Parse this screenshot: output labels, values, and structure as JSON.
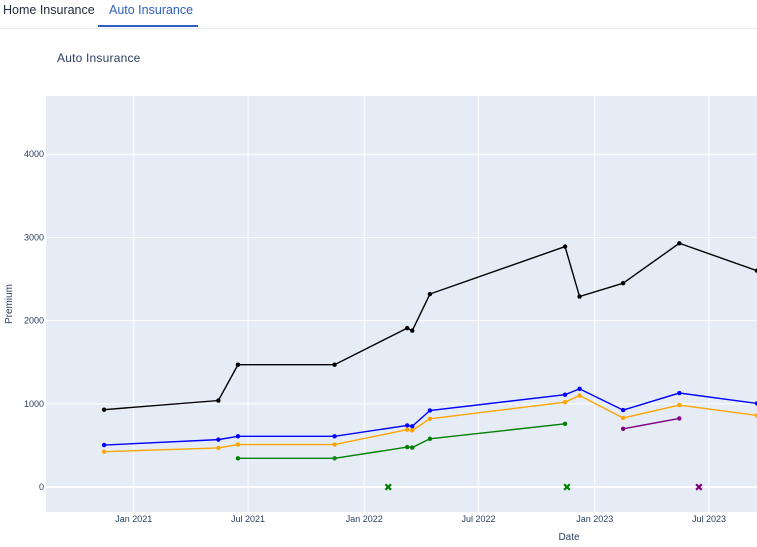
{
  "tabs": [
    {
      "label": "Home Insurance",
      "active": false
    },
    {
      "label": "Auto Insurance",
      "active": true
    }
  ],
  "colors": {
    "active_tab": "#2f5ec4",
    "plot_bg": "#e5ecf6",
    "grid": "#ffffff"
  },
  "chart_data": {
    "type": "line",
    "title": "Auto Insurance",
    "xlabel": "Date",
    "ylabel": "Premium",
    "ylim": [
      -300,
      4700
    ],
    "xlim": [
      "2020-08-15",
      "2023-09-15"
    ],
    "x_ticks": [
      {
        "label": "Jan 2021",
        "date": "2021-01-01"
      },
      {
        "label": "Jul 2021",
        "date": "2021-07-01"
      },
      {
        "label": "Jan 2022",
        "date": "2022-01-01"
      },
      {
        "label": "Jul 2022",
        "date": "2022-07-01"
      },
      {
        "label": "Jan 2023",
        "date": "2023-01-01"
      },
      {
        "label": "Jul 2023",
        "date": "2023-07-01"
      }
    ],
    "y_ticks": [
      0,
      1000,
      2000,
      3000,
      4000
    ],
    "grid": true,
    "legend": "none",
    "series": [
      {
        "color": "#000000",
        "mode": "lines+markers",
        "points": [
          {
            "x": "2020-11-15",
            "y": 930
          },
          {
            "x": "2021-05-15",
            "y": 1040
          },
          {
            "x": "2021-06-15",
            "y": 1470
          },
          {
            "x": "2021-11-15",
            "y": 1470
          },
          {
            "x": "2022-03-10",
            "y": 1910
          },
          {
            "x": "2022-03-18",
            "y": 1880
          },
          {
            "x": "2022-04-15",
            "y": 2320
          },
          {
            "x": "2022-11-15",
            "y": 2890
          },
          {
            "x": "2022-12-08",
            "y": 2290
          },
          {
            "x": "2023-02-15",
            "y": 2450
          },
          {
            "x": "2023-05-15",
            "y": 2930
          },
          {
            "x": "2023-09-15",
            "y": 2600
          }
        ]
      },
      {
        "color": "#0000ff",
        "mode": "lines+markers",
        "points": [
          {
            "x": "2020-11-15",
            "y": 505
          },
          {
            "x": "2021-05-15",
            "y": 570
          },
          {
            "x": "2021-06-15",
            "y": 610
          },
          {
            "x": "2021-11-15",
            "y": 610
          },
          {
            "x": "2022-03-10",
            "y": 740
          },
          {
            "x": "2022-03-18",
            "y": 730
          },
          {
            "x": "2022-04-15",
            "y": 920
          },
          {
            "x": "2022-11-15",
            "y": 1110
          },
          {
            "x": "2022-12-08",
            "y": 1180
          },
          {
            "x": "2023-02-15",
            "y": 925
          },
          {
            "x": "2023-05-15",
            "y": 1130
          },
          {
            "x": "2023-09-15",
            "y": 1005
          }
        ]
      },
      {
        "color": "#ffa500",
        "mode": "lines+markers",
        "points": [
          {
            "x": "2020-11-15",
            "y": 425
          },
          {
            "x": "2021-05-15",
            "y": 470
          },
          {
            "x": "2021-06-15",
            "y": 510
          },
          {
            "x": "2021-11-15",
            "y": 510
          },
          {
            "x": "2022-03-10",
            "y": 690
          },
          {
            "x": "2022-03-18",
            "y": 680
          },
          {
            "x": "2022-04-15",
            "y": 820
          },
          {
            "x": "2022-11-15",
            "y": 1020
          },
          {
            "x": "2022-12-08",
            "y": 1100
          },
          {
            "x": "2023-02-15",
            "y": 830
          },
          {
            "x": "2023-05-15",
            "y": 985
          },
          {
            "x": "2023-09-15",
            "y": 860
          }
        ]
      },
      {
        "color": "#008000",
        "mode": "lines+markers",
        "points": [
          {
            "x": "2021-06-15",
            "y": 345
          },
          {
            "x": "2021-11-15",
            "y": 345
          },
          {
            "x": "2022-03-10",
            "y": 480
          },
          {
            "x": "2022-03-18",
            "y": 475
          },
          {
            "x": "2022-04-15",
            "y": 580
          },
          {
            "x": "2022-11-15",
            "y": 760
          }
        ]
      },
      {
        "color": "#800080",
        "mode": "lines+markers",
        "points": [
          {
            "x": "2023-02-15",
            "y": 700
          },
          {
            "x": "2023-05-15",
            "y": 825
          }
        ]
      },
      {
        "color": "#008000",
        "mode": "markers",
        "marker": "x",
        "points": [
          {
            "x": "2022-02-08",
            "y": 0
          },
          {
            "x": "2022-11-18",
            "y": 0
          }
        ]
      },
      {
        "color": "#800080",
        "mode": "markers",
        "marker": "x",
        "points": [
          {
            "x": "2023-06-15",
            "y": 0
          }
        ]
      }
    ]
  }
}
